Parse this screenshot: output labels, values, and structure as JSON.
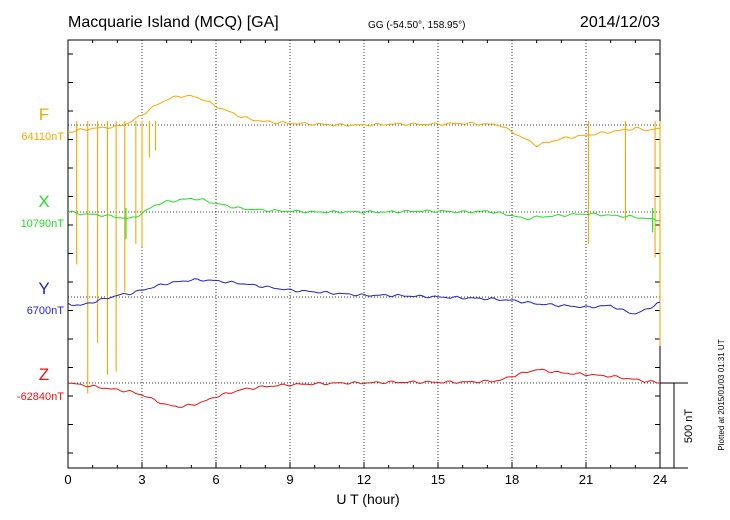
{
  "header": {
    "station": "Macquarie Island (MCQ)  [GA]",
    "coords": "GG (-54.50°, 158.95°)",
    "date": "2014/12/03"
  },
  "side_note": "Plotted at 2015/01/03 01:31  UT",
  "chart_data": {
    "type": "line",
    "xlabel": "U T (hour)",
    "xlim": [
      0,
      24
    ],
    "xticks": [
      "0",
      "3",
      "6",
      "9",
      "12",
      "15",
      "18",
      "21",
      "24"
    ],
    "scale_bar": {
      "label": "500 nT",
      "value_nT": 500
    },
    "grid": true,
    "series": [
      {
        "name": "F",
        "baseline": "64110nT",
        "color": "#f5a800",
        "x": [
          0,
          0.5,
          1,
          1.5,
          2,
          2.5,
          3,
          3.5,
          4,
          4.5,
          5,
          5.5,
          6,
          6.5,
          7,
          7.5,
          8,
          9,
          10,
          11,
          12,
          13,
          14,
          15,
          16,
          17,
          17.5,
          18,
          18.5,
          19,
          19.5,
          20,
          21,
          22,
          22.5,
          23,
          23.5,
          24
        ],
        "values": [
          -40,
          -30,
          -20,
          -15,
          -10,
          15,
          60,
          110,
          150,
          170,
          170,
          150,
          110,
          80,
          50,
          30,
          20,
          10,
          5,
          0,
          0,
          5,
          5,
          5,
          10,
          5,
          0,
          -40,
          -80,
          -120,
          -100,
          -80,
          -60,
          -40,
          -30,
          -20,
          -30,
          -20
        ],
        "spikes": [
          {
            "x": 0.35,
            "depth": 820
          },
          {
            "x": 0.8,
            "depth": 1580
          },
          {
            "x": 1.2,
            "depth": 1280
          },
          {
            "x": 1.6,
            "depth": 1470
          },
          {
            "x": 1.95,
            "depth": 1450
          },
          {
            "x": 2.3,
            "depth": 980
          },
          {
            "x": 2.75,
            "depth": 700
          },
          {
            "x": 3.0,
            "depth": 720
          },
          {
            "x": 3.3,
            "depth": 190
          },
          {
            "x": 3.55,
            "depth": 150
          },
          {
            "x": 21.1,
            "depth": 700
          },
          {
            "x": 22.6,
            "depth": 560
          },
          {
            "x": 23.8,
            "depth": 780
          },
          {
            "x": 24.0,
            "depth": 1300
          }
        ]
      },
      {
        "name": "X",
        "baseline": "10790nT",
        "color": "#22dd22",
        "x": [
          0,
          0.5,
          1,
          1.5,
          2,
          2.5,
          3,
          3.5,
          4,
          4.5,
          5,
          5.5,
          6,
          7,
          8,
          9,
          10,
          11,
          12,
          13,
          14,
          15,
          16,
          17,
          18,
          18.5,
          19,
          20,
          21,
          22,
          23,
          24
        ],
        "values": [
          0,
          -10,
          -15,
          -20,
          -30,
          -40,
          -10,
          40,
          60,
          70,
          80,
          70,
          50,
          20,
          10,
          5,
          0,
          0,
          0,
          0,
          5,
          5,
          0,
          5,
          -20,
          -40,
          -30,
          -20,
          -10,
          -20,
          -30,
          -50
        ],
        "spikes": [
          {
            "x": 2.35,
            "depth": 160
          },
          {
            "x": 23.7,
            "depth": 120
          }
        ]
      },
      {
        "name": "Y",
        "baseline": "6700nT",
        "color": "#2222cc",
        "x": [
          0,
          0.5,
          1,
          1.5,
          2,
          2.5,
          3,
          3.5,
          4,
          4.5,
          5,
          5.5,
          6,
          7,
          8,
          9,
          10,
          11,
          12,
          13,
          14,
          15,
          16,
          17,
          18,
          19,
          20,
          21,
          22,
          22.5,
          23,
          23.5,
          24
        ],
        "values": [
          -40,
          -50,
          -30,
          -10,
          10,
          20,
          40,
          60,
          80,
          90,
          100,
          100,
          95,
          80,
          60,
          40,
          30,
          20,
          10,
          10,
          5,
          0,
          -5,
          -10,
          -20,
          -40,
          -50,
          -60,
          -50,
          -80,
          -100,
          -70,
          -30
        ],
        "spikes": []
      },
      {
        "name": "Z",
        "baseline": "-62840nT",
        "color": "#ee1111",
        "x": [
          0,
          0.5,
          1,
          1.5,
          2,
          2.5,
          3,
          3.5,
          4,
          4.5,
          5,
          5.5,
          6,
          7,
          8,
          9,
          10,
          11,
          12,
          13,
          14,
          15,
          16,
          17,
          17.5,
          18,
          18.5,
          19,
          19.5,
          20,
          21,
          22,
          23,
          24
        ],
        "values": [
          0,
          -10,
          -20,
          -30,
          -40,
          -50,
          -70,
          -100,
          -130,
          -140,
          -130,
          -110,
          -80,
          -40,
          -20,
          -10,
          -5,
          0,
          0,
          5,
          5,
          5,
          5,
          10,
          15,
          40,
          60,
          80,
          70,
          60,
          50,
          40,
          20,
          0
        ],
        "spikes": []
      }
    ]
  }
}
